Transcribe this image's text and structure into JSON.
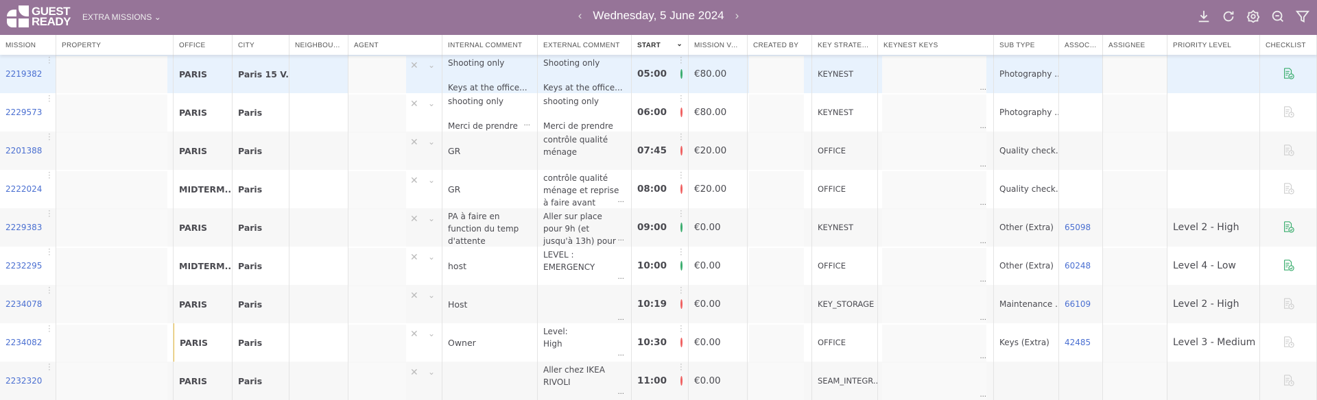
{
  "header": {
    "logo_text": "GUEST READY",
    "section": "EXTRA MISSIONS",
    "date": "Wednesday, 5 June 2024",
    "tools": [
      "download-icon",
      "refresh-icon",
      "settings-icon",
      "zoom-out-icon",
      "filter-icon"
    ]
  },
  "columns": [
    "MISSION",
    "PROPERTY",
    "OFFICE",
    "CITY",
    "NEIGHBOUR...",
    "AGENT",
    "INTERNAL COMMENT",
    "EXTERNAL COMMENT",
    "START",
    "MISSION VAL...",
    "CREATED BY",
    "KEY STRATEGY",
    "KEYNEST KEYS",
    "SUB TYPE",
    "ASSOCI...",
    "ASSIGNEE",
    "PRIORITY LEVEL",
    "CHECKLIST"
  ],
  "colors": {
    "green": "#3aad6e",
    "red": "#f06060",
    "link": "#4a6fd1",
    "header": "#967498"
  },
  "rows": [
    {
      "mission": "2219382",
      "office": "PARIS",
      "city": "Paris 15 V...",
      "internal": "Shooting only\n\nKeys at the office...",
      "external": "Shooting only\n\nKeys at the office...",
      "start": "05:00",
      "status": "green",
      "value": "€80.00",
      "key_strategy": "KEYNEST",
      "sub_type": "Photography ...",
      "assoc": "",
      "priority": "",
      "checklist": "done"
    },
    {
      "mission": "2229573",
      "office": "PARIS",
      "city": "Paris",
      "internal": "shooting only\n\nMerci de prendre",
      "external": "shooting only\n\nMerci de prendre",
      "start": "06:00",
      "status": "red",
      "value": "€80.00",
      "key_strategy": "KEYNEST",
      "sub_type": "Photography ...",
      "assoc": "",
      "priority": "",
      "checklist": "pending"
    },
    {
      "mission": "2201388",
      "office": "PARIS",
      "city": "Paris",
      "internal": "GR",
      "external": "contrôle qualité\nménage",
      "start": "07:45",
      "status": "red",
      "value": "€20.00",
      "key_strategy": "OFFICE",
      "sub_type": "Quality check...",
      "assoc": "",
      "priority": "",
      "checklist": "pending"
    },
    {
      "mission": "2222024",
      "office": "MIDTERM...",
      "city": "Paris",
      "internal": "GR",
      "external": "contrôle qualité\nménage et reprise\nà faire avant",
      "start": "08:00",
      "status": "red",
      "value": "€20.00",
      "key_strategy": "OFFICE",
      "sub_type": "Quality check...",
      "assoc": "",
      "priority": "",
      "checklist": "pending"
    },
    {
      "mission": "2229383",
      "office": "PARIS",
      "city": "Paris",
      "internal": "PA à faire en\nfunction du temp\nd'attente",
      "external": "Aller sur place\npour 9h (et\njusqu'à 13h) pour",
      "start": "09:00",
      "status": "green",
      "value": "€0.00",
      "key_strategy": "KEYNEST",
      "sub_type": "Other (Extra)",
      "assoc": "65098",
      "priority": "Level 2 - High",
      "checklist": "done"
    },
    {
      "mission": "2232295",
      "office": "MIDTERM...",
      "city": "Paris",
      "internal": "host",
      "external": "LEVEL :\nEMERGENCY",
      "start": "10:00",
      "status": "green",
      "value": "€0.00",
      "key_strategy": "OFFICE",
      "sub_type": "Other (Extra)",
      "assoc": "60248",
      "priority": "Level 4 - Low",
      "checklist": "done"
    },
    {
      "mission": "2234078",
      "office": "PARIS",
      "city": "Paris",
      "internal": "Host",
      "external": "",
      "start": "10:19",
      "status": "red",
      "value": "€0.00",
      "key_strategy": "KEY_STORAGE",
      "sub_type": "Maintenance ...",
      "assoc": "66109",
      "priority": "Level 2 - High",
      "checklist": "pending"
    },
    {
      "mission": "2234082",
      "office": "PARIS",
      "city": "Paris",
      "internal": "Owner",
      "external": "Level:\nHigh",
      "start": "10:30",
      "status": "red",
      "value": "€0.00",
      "key_strategy": "OFFICE",
      "sub_type": "Keys (Extra)",
      "assoc": "42485",
      "priority": "Level 3 - Medium",
      "checklist": "pending"
    },
    {
      "mission": "2232320",
      "office": "PARIS",
      "city": "Paris",
      "internal": "",
      "external": "Aller chez IKEA\nRIVOLI",
      "start": "11:00",
      "status": "red",
      "value": "€0.00",
      "key_strategy": "SEAM_INTEGR...",
      "sub_type": "",
      "assoc": "",
      "priority": "",
      "checklist": "pending"
    }
  ]
}
